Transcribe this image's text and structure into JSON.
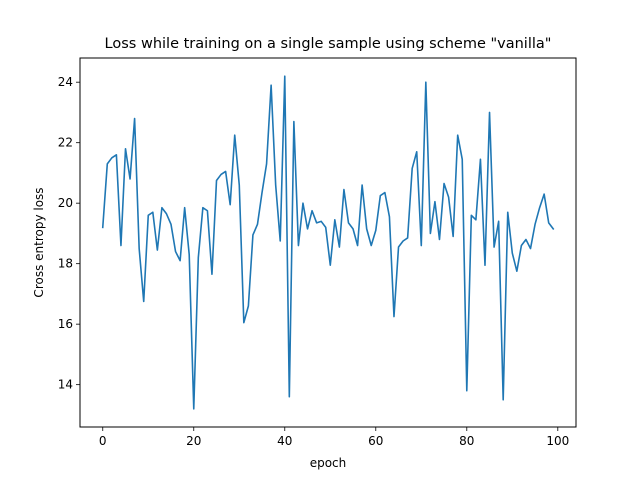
{
  "chart_data": {
    "type": "line",
    "title": "Loss while training on a single sample using scheme \"vanilla\"",
    "xlabel": "epoch",
    "ylabel": "Cross entropy loss",
    "xlim": [
      -5,
      104
    ],
    "ylim": [
      12.6,
      24.8
    ],
    "xticks": [
      0,
      20,
      40,
      60,
      80,
      100
    ],
    "yticks": [
      14,
      16,
      18,
      20,
      22,
      24
    ],
    "grid": false,
    "legend": "none",
    "series": [
      {
        "color": "#1f77b4",
        "x": [
          0,
          1,
          2,
          3,
          4,
          5,
          6,
          7,
          8,
          9,
          10,
          11,
          12,
          13,
          14,
          15,
          16,
          17,
          18,
          19,
          20,
          21,
          22,
          23,
          24,
          25,
          26,
          27,
          28,
          29,
          30,
          31,
          32,
          33,
          34,
          35,
          36,
          37,
          38,
          39,
          40,
          41,
          42,
          43,
          44,
          45,
          46,
          47,
          48,
          49,
          50,
          51,
          52,
          53,
          54,
          55,
          56,
          57,
          58,
          59,
          60,
          61,
          62,
          63,
          64,
          65,
          66,
          67,
          68,
          69,
          70,
          71,
          72,
          73,
          74,
          75,
          76,
          77,
          78,
          79,
          80,
          81,
          82,
          83,
          84,
          85,
          86,
          87,
          88,
          89,
          90,
          91,
          92,
          93,
          94,
          95,
          96,
          97,
          98,
          99
        ],
        "y": [
          19.2,
          21.3,
          21.5,
          21.6,
          18.6,
          21.8,
          20.8,
          22.8,
          18.5,
          16.75,
          19.6,
          19.7,
          18.45,
          19.85,
          19.65,
          19.3,
          18.4,
          18.1,
          19.85,
          18.3,
          13.2,
          18.2,
          19.85,
          19.75,
          17.65,
          20.75,
          20.95,
          21.05,
          19.95,
          22.25,
          20.6,
          16.05,
          16.6,
          18.95,
          19.3,
          20.35,
          21.3,
          23.9,
          20.6,
          18.75,
          24.2,
          13.6,
          22.7,
          18.6,
          20.0,
          19.15,
          19.75,
          19.35,
          19.4,
          19.2,
          17.95,
          19.45,
          18.55,
          20.45,
          19.35,
          19.15,
          18.6,
          20.6,
          19.15,
          18.6,
          19.1,
          20.25,
          20.35,
          19.55,
          16.25,
          18.55,
          18.75,
          18.85,
          21.15,
          21.7,
          18.6,
          24.0,
          19.0,
          20.05,
          18.8,
          20.65,
          20.2,
          18.9,
          22.25,
          21.45,
          13.8,
          19.6,
          19.45,
          21.45,
          17.95,
          23.0,
          18.55,
          19.4,
          13.5,
          19.7,
          18.35,
          17.75,
          18.6,
          18.8,
          18.5,
          19.3,
          19.85,
          20.3,
          19.35,
          19.15
        ]
      }
    ]
  }
}
